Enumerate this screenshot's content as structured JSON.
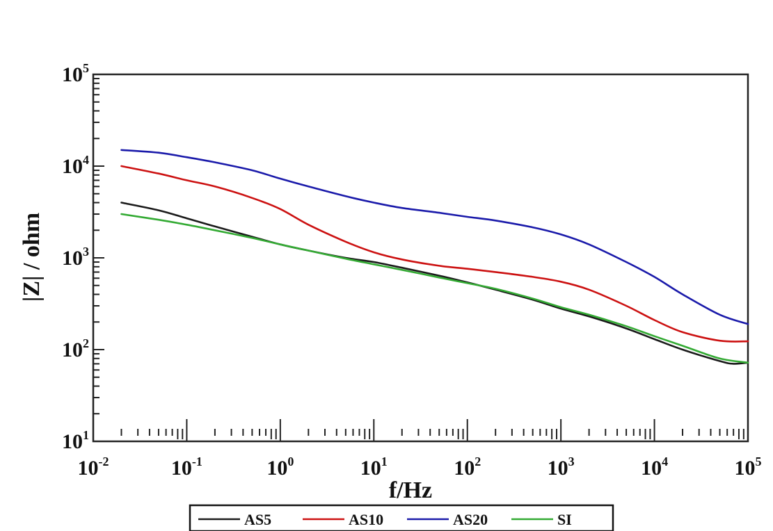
{
  "chart_data": {
    "type": "line",
    "xlabel": "f/Hz",
    "ylabel": "|Z| / ohm",
    "x_scale": "log",
    "y_scale": "log",
    "xlim": [
      0.01,
      100000
    ],
    "ylim": [
      10,
      100000
    ],
    "x_ticks": [
      {
        "value": 0.01,
        "base": "10",
        "exp": "-2"
      },
      {
        "value": 0.1,
        "base": "10",
        "exp": "-1"
      },
      {
        "value": 1,
        "base": "10",
        "exp": "0"
      },
      {
        "value": 10,
        "base": "10",
        "exp": "1"
      },
      {
        "value": 100,
        "base": "10",
        "exp": "2"
      },
      {
        "value": 1000,
        "base": "10",
        "exp": "3"
      },
      {
        "value": 10000,
        "base": "10",
        "exp": "4"
      },
      {
        "value": 100000,
        "base": "10",
        "exp": "5"
      }
    ],
    "y_ticks": [
      {
        "value": 10,
        "base": "10",
        "exp": "1"
      },
      {
        "value": 100,
        "base": "10",
        "exp": "2"
      },
      {
        "value": 1000,
        "base": "10",
        "exp": "3"
      },
      {
        "value": 10000,
        "base": "10",
        "exp": "4"
      },
      {
        "value": 100000,
        "base": "10",
        "exp": "5"
      }
    ],
    "legend_position": "bottom",
    "grid": false,
    "series": [
      {
        "name": "AS5",
        "color": "#1a1a1a",
        "x": [
          0.02,
          0.05,
          0.1,
          0.2,
          0.5,
          1,
          2,
          5,
          10,
          20,
          50,
          100,
          200,
          500,
          1000,
          2000,
          5000,
          10000,
          20000,
          50000,
          70000,
          100000
        ],
        "y": [
          4000,
          3300,
          2700,
          2200,
          1700,
          1400,
          1200,
          1000,
          900,
          780,
          640,
          540,
          450,
          350,
          280,
          230,
          170,
          130,
          100,
          75,
          70,
          72
        ]
      },
      {
        "name": "AS10",
        "color": "#cc1111",
        "x": [
          0.02,
          0.05,
          0.1,
          0.2,
          0.5,
          1,
          2,
          5,
          10,
          20,
          50,
          100,
          200,
          500,
          1000,
          2000,
          5000,
          10000,
          20000,
          50000,
          100000
        ],
        "y": [
          10000,
          8300,
          7000,
          6000,
          4500,
          3400,
          2300,
          1500,
          1150,
          960,
          820,
          760,
          700,
          620,
          550,
          450,
          300,
          210,
          155,
          125,
          123
        ]
      },
      {
        "name": "AS20",
        "color": "#1a1aaa",
        "x": [
          0.02,
          0.05,
          0.1,
          0.2,
          0.5,
          1,
          2,
          5,
          10,
          20,
          50,
          100,
          200,
          500,
          1000,
          2000,
          5000,
          10000,
          20000,
          50000,
          100000
        ],
        "y": [
          15000,
          14000,
          12500,
          11000,
          9000,
          7300,
          6000,
          4700,
          4000,
          3500,
          3100,
          2800,
          2550,
          2150,
          1800,
          1400,
          900,
          620,
          400,
          240,
          190
        ]
      },
      {
        "name": "SI",
        "color": "#33aa33",
        "x": [
          0.02,
          0.05,
          0.1,
          0.2,
          0.5,
          1,
          2,
          5,
          10,
          20,
          50,
          100,
          200,
          500,
          1000,
          2000,
          5000,
          10000,
          20000,
          50000,
          100000
        ],
        "y": [
          3000,
          2600,
          2300,
          2000,
          1650,
          1400,
          1200,
          980,
          850,
          740,
          610,
          530,
          460,
          360,
          290,
          240,
          180,
          140,
          110,
          80,
          72
        ]
      }
    ]
  }
}
